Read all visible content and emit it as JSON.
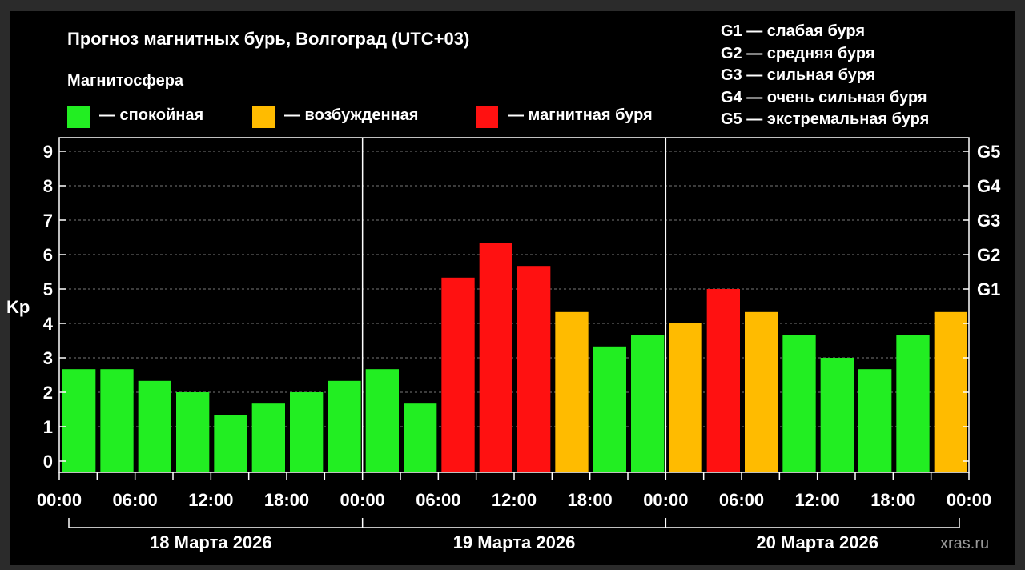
{
  "title": "Прогноз магнитных бурь, Волгоград (UTC+03)",
  "legend": {
    "heading": "Магнитосфера",
    "items": [
      {
        "label": "— спокойная",
        "color": "#22ee22"
      },
      {
        "label": "— возбужденная",
        "color": "#ffbb00"
      },
      {
        "label": "— магнитная буря",
        "color": "#ff1111"
      }
    ]
  },
  "storm_legend": [
    "G1 — слабая буря",
    "G2 — средняя буря",
    "G3 — сильная буря",
    "G4 — очень сильная буря",
    "G5 — экстремальная буря"
  ],
  "watermark": "xras.ru",
  "chart_data": {
    "type": "bar",
    "ylabel": "Kp",
    "ylim": [
      0,
      9
    ],
    "y_ticks": [
      "0",
      "1",
      "2",
      "3",
      "4",
      "5",
      "6",
      "7",
      "8",
      "9"
    ],
    "right_ticks": [
      {
        "value": 5,
        "label": "G1"
      },
      {
        "value": 6,
        "label": "G2"
      },
      {
        "value": 7,
        "label": "G3"
      },
      {
        "value": 8,
        "label": "G4"
      },
      {
        "value": 9,
        "label": "G5"
      }
    ],
    "x_tick_labels": [
      "00:00",
      "06:00",
      "12:00",
      "18:00",
      "00:00",
      "06:00",
      "12:00",
      "18:00",
      "00:00",
      "06:00",
      "12:00",
      "18:00",
      "00:00"
    ],
    "days": [
      "18 Марта 2026",
      "19 Марта 2026",
      "20 Марта 2026"
    ],
    "grid": "dashed horizontal",
    "values": [
      2.67,
      2.67,
      2.33,
      2.0,
      1.33,
      1.67,
      2.0,
      2.33,
      2.67,
      1.67,
      5.33,
      6.33,
      5.67,
      4.33,
      3.33,
      3.67,
      4.0,
      5.0,
      4.33,
      3.67,
      3.0,
      2.67,
      3.67,
      4.33
    ],
    "levels": [
      "quiet",
      "quiet",
      "quiet",
      "quiet",
      "quiet",
      "quiet",
      "quiet",
      "quiet",
      "quiet",
      "quiet",
      "storm",
      "storm",
      "storm",
      "active",
      "quiet",
      "quiet",
      "active",
      "storm",
      "active",
      "quiet",
      "quiet",
      "quiet",
      "quiet",
      "active"
    ],
    "level_colors": {
      "quiet": "#22ee22",
      "active": "#ffbb00",
      "storm": "#ff1111"
    }
  }
}
